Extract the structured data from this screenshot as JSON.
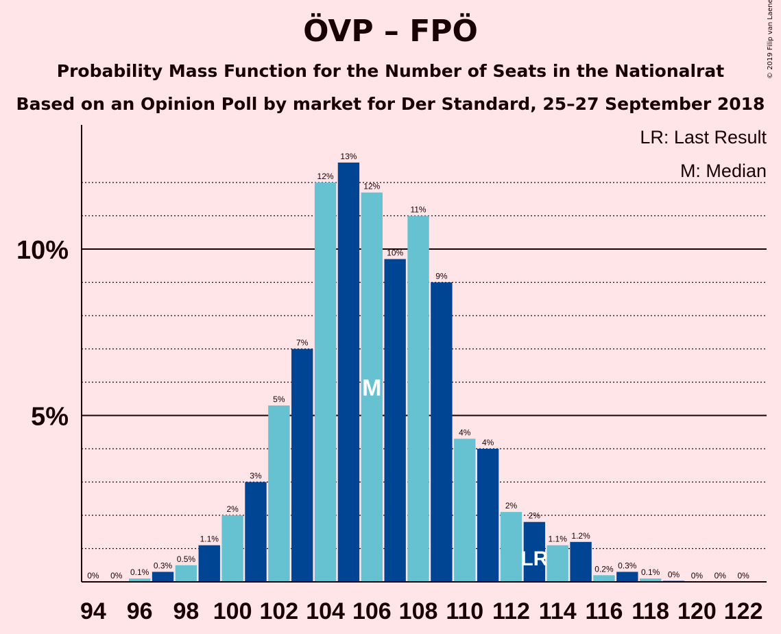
{
  "title": "ÖVP – FPÖ",
  "subtitle": "Probability Mass Function for the Number of Seats in the Nationalrat",
  "subtitle2": "Based on an Opinion Poll by market for Der Standard, 25–27 September 2018",
  "copyright": "© 2019 Filip van Laenen",
  "colors": {
    "background": "#ffe4e8",
    "dark_bar": "#004494",
    "light_bar": "#66c2d1",
    "text": "#1a0000"
  },
  "chart_data": {
    "type": "bar",
    "title": "ÖVP – FPÖ",
    "xlabel": "",
    "ylabel": "",
    "ylim": [
      0,
      13.7
    ],
    "yticks": [
      {
        "value": 5,
        "label": "5%"
      },
      {
        "value": 10,
        "label": "10%"
      }
    ],
    "xtick_labels": [
      "94",
      "96",
      "98",
      "100",
      "102",
      "104",
      "106",
      "108",
      "110",
      "112",
      "114",
      "116",
      "118",
      "120",
      "122"
    ],
    "categories": [
      94,
      95,
      96,
      97,
      98,
      99,
      100,
      101,
      102,
      103,
      104,
      105,
      106,
      107,
      108,
      109,
      110,
      111,
      112,
      113,
      114,
      115,
      116,
      117,
      118,
      119,
      120,
      121,
      122
    ],
    "values": [
      0,
      0,
      0.1,
      0.3,
      0.5,
      1.1,
      2,
      3,
      5.3,
      7,
      12,
      12.6,
      11.7,
      9.7,
      11,
      9,
      4.3,
      4,
      2.1,
      1.8,
      1.1,
      1.2,
      0.2,
      0.3,
      0.1,
      0.03,
      0,
      0,
      0
    ],
    "labels": [
      "0%",
      "0%",
      "0.1%",
      "0.3%",
      "0.5%",
      "1.1%",
      "2%",
      "3%",
      "5%",
      "7%",
      "12%",
      "13%",
      "12%",
      "10%",
      "11%",
      "9%",
      "4%",
      "4%",
      "2%",
      "2%",
      "1.1%",
      "1.2%",
      "0.2%",
      "0.3%",
      "0.1%",
      "0%",
      "0%",
      "0%",
      "0%"
    ],
    "legend": [
      "LR: Last Result",
      "M: Median"
    ],
    "median": {
      "seat": 106,
      "marker": "M"
    },
    "last_result": {
      "seat": 113,
      "marker": "LR"
    }
  }
}
